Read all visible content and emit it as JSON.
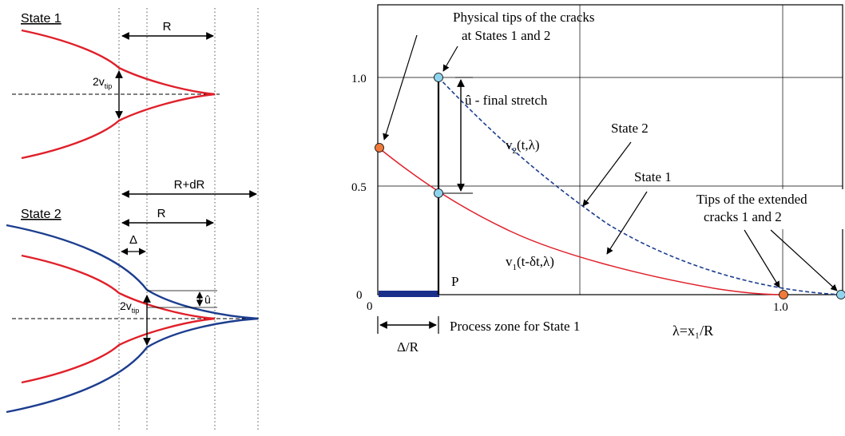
{
  "left_panel": {
    "state1_title": "State 1",
    "state2_title": "State 2",
    "R_label_1": "R",
    "R_label_2": "R",
    "RdR_label": "R+dR",
    "delta_label": "Δ",
    "v_tip_label_1": {
      "main": "2v",
      "sub": "tip"
    },
    "v_tip_label_2": {
      "main": "2v",
      "sub": "tip"
    },
    "u_hat_label": "û"
  },
  "right_panel": {
    "callout_physical_tips": [
      "Physical tips of the cracks",
      "at States 1 and 2"
    ],
    "label_u_hat": "û - final stretch",
    "label_v2": {
      "pre": "v",
      "sub": "2",
      "post": "(t,λ)"
    },
    "label_state2": "State 2",
    "label_state1": "State 1",
    "callout_extended_tips": [
      "Tips of the extended",
      "cracks 1 and 2"
    ],
    "label_v1": {
      "pre": "v",
      "sub": "1",
      "post": "(t-δt,λ)"
    },
    "label_P": "P",
    "label_process_zone": "Process zone for State 1",
    "label_delta_R": "Δ/R",
    "x_axis_label": "λ=x₁/R",
    "y_ticks": [
      "1.0",
      "0.5",
      "0"
    ],
    "x_ticks": [
      "0",
      "1.0"
    ]
  },
  "colors": {
    "state1_curve": "#e0202a",
    "state2_curve": "#1c3d8f",
    "marker_blue": "#8fd4ee",
    "marker_orange": "#f07a3a",
    "process_zone_bar": "#1a2f8a"
  }
}
